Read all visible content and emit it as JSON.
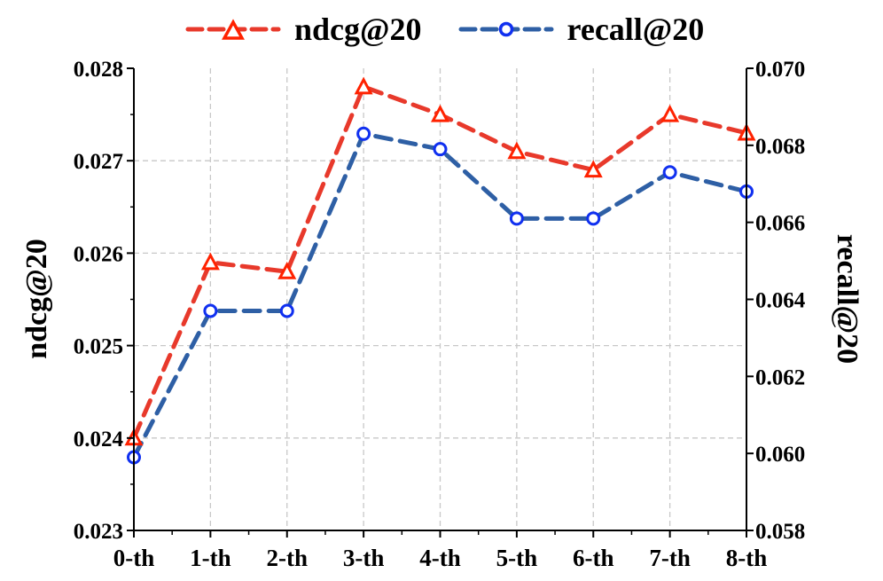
{
  "chart_data": {
    "type": "line",
    "title": "",
    "categories": [
      "0-th",
      "1-th",
      "2-th",
      "3-th",
      "4-th",
      "5-th",
      "6-th",
      "7-th",
      "8-th"
    ],
    "xlabel": "",
    "series": [
      {
        "name": "ndcg@20",
        "axis": "left",
        "color": "#e8392b",
        "marker_color": "#ff2200",
        "marker": "triangle",
        "linestyle": "dashed",
        "values": [
          0.024,
          0.0259,
          0.0258,
          0.0278,
          0.0275,
          0.0271,
          0.0269,
          0.0275,
          0.0273
        ]
      },
      {
        "name": "recall@20",
        "axis": "right",
        "color": "#2e5fa5",
        "marker_color": "#1030f0",
        "marker": "circle",
        "linestyle": "dashed",
        "values": [
          0.0599,
          0.0637,
          0.0637,
          0.0683,
          0.0679,
          0.0661,
          0.0661,
          0.0673,
          0.0668
        ]
      }
    ],
    "left_axis": {
      "label": "ndcg@20",
      "ylim": [
        0.023,
        0.028
      ],
      "ticks": [
        "0.023",
        "0.024",
        "0.025",
        "0.026",
        "0.027",
        "0.028"
      ]
    },
    "right_axis": {
      "label": "recall@20",
      "ylim": [
        0.058,
        0.07
      ],
      "ticks": [
        "0.058",
        "0.060",
        "0.062",
        "0.064",
        "0.066",
        "0.068",
        "0.070"
      ]
    },
    "grid": true,
    "grid_style": "dashed light gray",
    "legend_position": "top center, outside plot"
  },
  "legend": {
    "items": [
      {
        "label": "ndcg@20"
      },
      {
        "label": "recall@20"
      }
    ]
  }
}
